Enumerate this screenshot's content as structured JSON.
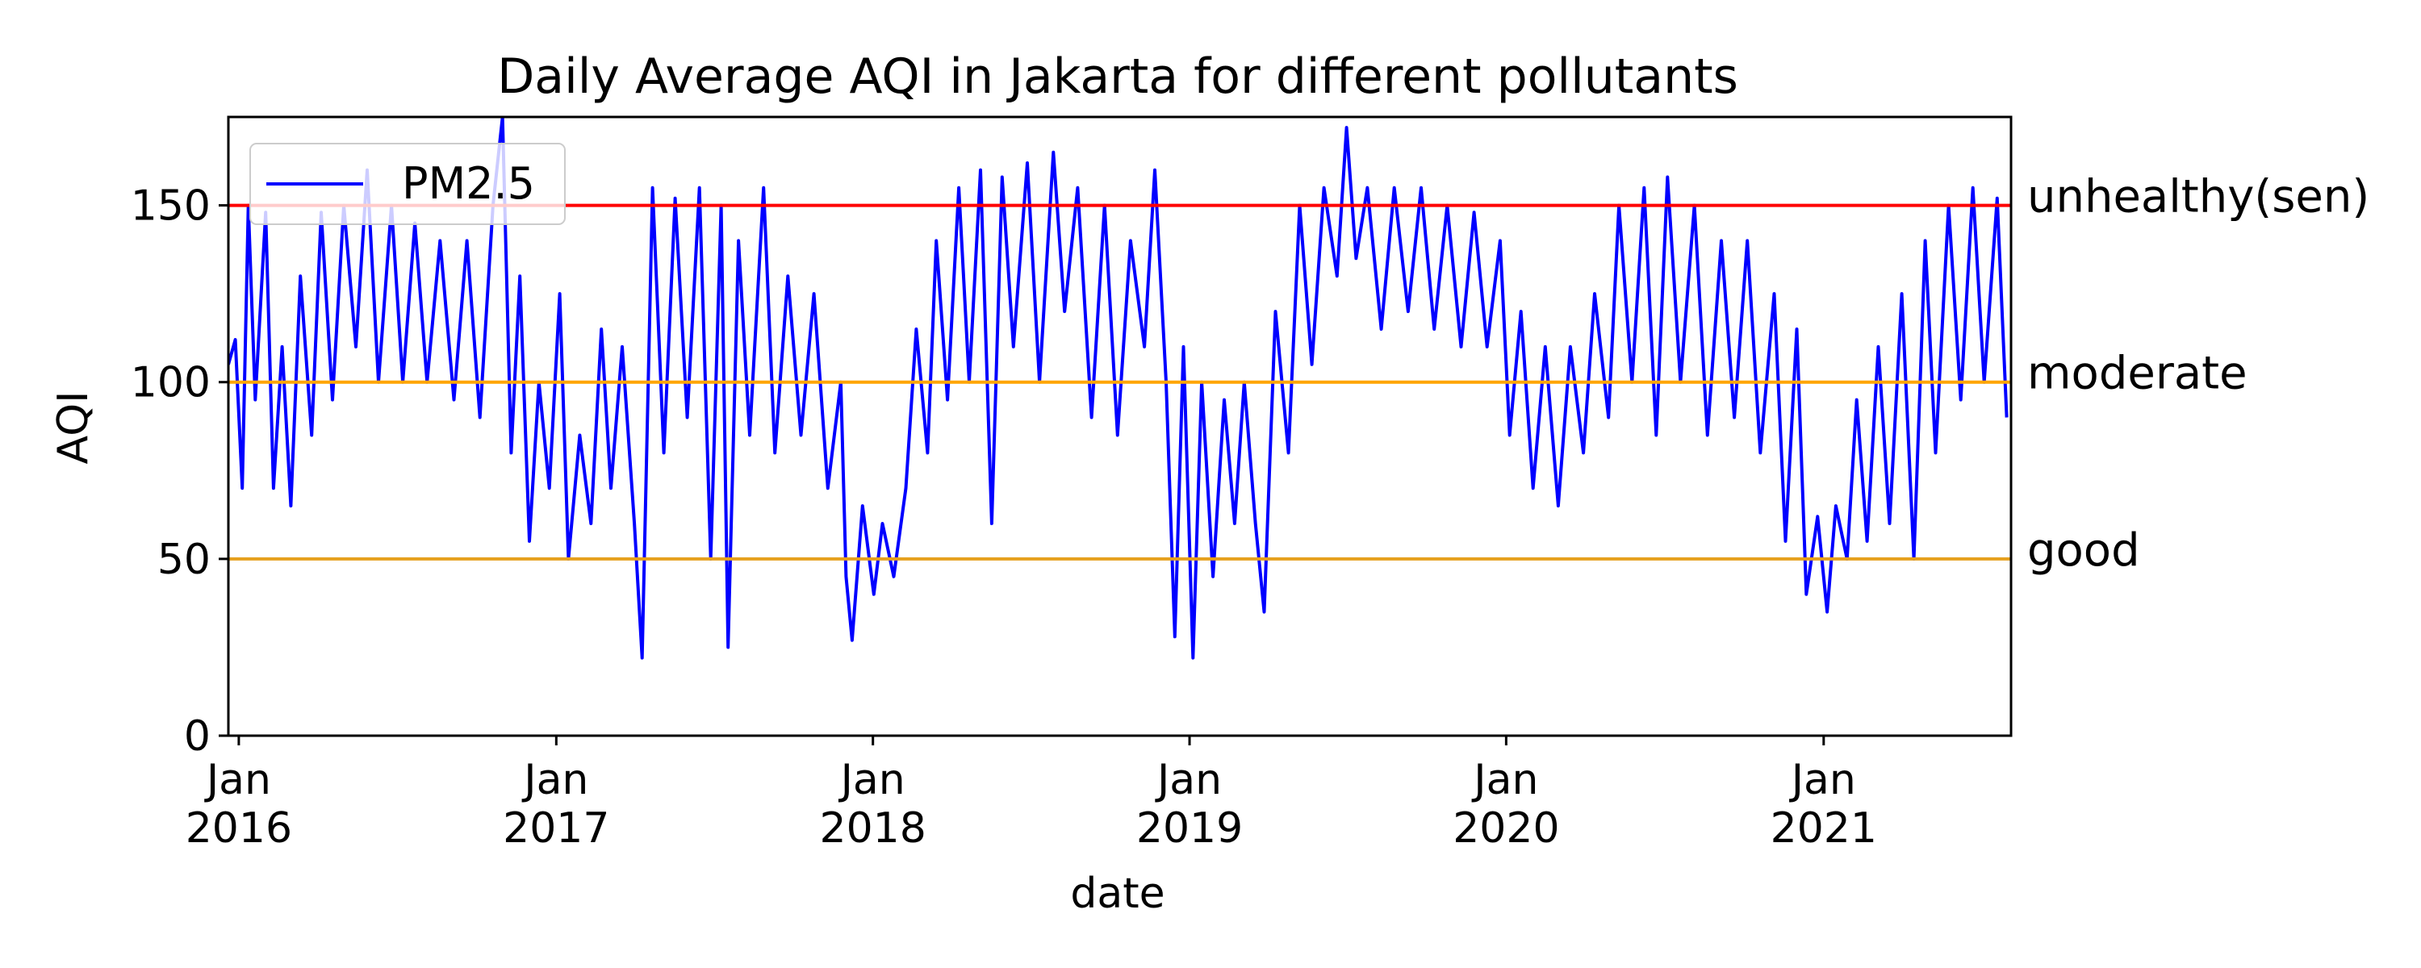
{
  "chart_data": {
    "type": "line",
    "title": "Daily Average AQI in Jakarta for different pollutants",
    "xlabel": "date",
    "ylabel": "AQI",
    "xlim": [
      "2015-12-20",
      "2021-08-05"
    ],
    "ylim": [
      0,
      175
    ],
    "y_ticks": [
      0,
      50,
      100,
      150
    ],
    "x_ticks": [
      {
        "date": "2016-01-01",
        "month": "Jan",
        "year": "2016"
      },
      {
        "date": "2017-01-01",
        "month": "Jan",
        "year": "2017"
      },
      {
        "date": "2018-01-01",
        "month": "Jan",
        "year": "2018"
      },
      {
        "date": "2019-01-01",
        "month": "Jan",
        "year": "2019"
      },
      {
        "date": "2020-01-01",
        "month": "Jan",
        "year": "2020"
      },
      {
        "date": "2021-01-01",
        "month": "Jan",
        "year": "2021"
      }
    ],
    "grid": false,
    "legend": {
      "position": "top-left",
      "entries": [
        "PM2.5"
      ]
    },
    "series": [
      {
        "name": "PM2.5",
        "color": "#0000ff",
        "points": [
          [
            "2015-12-20",
            105
          ],
          [
            "2015-12-28",
            112
          ],
          [
            "2016-01-05",
            70
          ],
          [
            "2016-01-12",
            150
          ],
          [
            "2016-01-20",
            95
          ],
          [
            "2016-02-01",
            148
          ],
          [
            "2016-02-10",
            70
          ],
          [
            "2016-02-20",
            110
          ],
          [
            "2016-03-01",
            65
          ],
          [
            "2016-03-12",
            130
          ],
          [
            "2016-03-25",
            85
          ],
          [
            "2016-04-05",
            148
          ],
          [
            "2016-04-18",
            95
          ],
          [
            "2016-05-01",
            150
          ],
          [
            "2016-05-15",
            110
          ],
          [
            "2016-05-28",
            160
          ],
          [
            "2016-06-10",
            100
          ],
          [
            "2016-06-25",
            150
          ],
          [
            "2016-07-08",
            100
          ],
          [
            "2016-07-22",
            145
          ],
          [
            "2016-08-05",
            100
          ],
          [
            "2016-08-20",
            140
          ],
          [
            "2016-09-05",
            95
          ],
          [
            "2016-09-20",
            140
          ],
          [
            "2016-10-05",
            90
          ],
          [
            "2016-10-20",
            150
          ],
          [
            "2016-10-31",
            175
          ],
          [
            "2016-11-10",
            80
          ],
          [
            "2016-11-20",
            130
          ],
          [
            "2016-12-01",
            55
          ],
          [
            "2016-12-12",
            100
          ],
          [
            "2016-12-24",
            70
          ],
          [
            "2017-01-05",
            125
          ],
          [
            "2017-01-15",
            50
          ],
          [
            "2017-01-28",
            85
          ],
          [
            "2017-02-10",
            60
          ],
          [
            "2017-02-22",
            115
          ],
          [
            "2017-03-05",
            70
          ],
          [
            "2017-03-18",
            110
          ],
          [
            "2017-04-01",
            60
          ],
          [
            "2017-04-10",
            22
          ],
          [
            "2017-04-22",
            155
          ],
          [
            "2017-05-05",
            80
          ],
          [
            "2017-05-18",
            152
          ],
          [
            "2017-06-01",
            90
          ],
          [
            "2017-06-15",
            155
          ],
          [
            "2017-06-28",
            50
          ],
          [
            "2017-07-10",
            150
          ],
          [
            "2017-07-18",
            25
          ],
          [
            "2017-07-30",
            140
          ],
          [
            "2017-08-12",
            85
          ],
          [
            "2017-08-28",
            155
          ],
          [
            "2017-09-10",
            80
          ],
          [
            "2017-09-25",
            130
          ],
          [
            "2017-10-10",
            85
          ],
          [
            "2017-10-25",
            125
          ],
          [
            "2017-11-10",
            70
          ],
          [
            "2017-11-25",
            100
          ],
          [
            "2017-12-01",
            45
          ],
          [
            "2017-12-08",
            27
          ],
          [
            "2017-12-20",
            65
          ],
          [
            "2018-01-02",
            40
          ],
          [
            "2018-01-12",
            60
          ],
          [
            "2018-01-25",
            45
          ],
          [
            "2018-02-08",
            70
          ],
          [
            "2018-02-20",
            115
          ],
          [
            "2018-03-05",
            80
          ],
          [
            "2018-03-15",
            140
          ],
          [
            "2018-03-28",
            95
          ],
          [
            "2018-04-10",
            155
          ],
          [
            "2018-04-22",
            100
          ],
          [
            "2018-05-05",
            160
          ],
          [
            "2018-05-18",
            60
          ],
          [
            "2018-05-30",
            158
          ],
          [
            "2018-06-12",
            110
          ],
          [
            "2018-06-28",
            162
          ],
          [
            "2018-07-12",
            100
          ],
          [
            "2018-07-28",
            165
          ],
          [
            "2018-08-10",
            120
          ],
          [
            "2018-08-25",
            155
          ],
          [
            "2018-09-10",
            90
          ],
          [
            "2018-09-25",
            150
          ],
          [
            "2018-10-10",
            85
          ],
          [
            "2018-10-25",
            140
          ],
          [
            "2018-11-10",
            110
          ],
          [
            "2018-11-22",
            160
          ],
          [
            "2018-12-05",
            100
          ],
          [
            "2018-12-15",
            28
          ],
          [
            "2018-12-25",
            110
          ],
          [
            "2019-01-05",
            22
          ],
          [
            "2019-01-15",
            100
          ],
          [
            "2019-01-28",
            45
          ],
          [
            "2019-02-10",
            95
          ],
          [
            "2019-02-22",
            60
          ],
          [
            "2019-03-05",
            100
          ],
          [
            "2019-03-18",
            60
          ],
          [
            "2019-03-28",
            35
          ],
          [
            "2019-04-10",
            120
          ],
          [
            "2019-04-25",
            80
          ],
          [
            "2019-05-08",
            150
          ],
          [
            "2019-05-22",
            105
          ],
          [
            "2019-06-05",
            155
          ],
          [
            "2019-06-20",
            130
          ],
          [
            "2019-07-01",
            172
          ],
          [
            "2019-07-12",
            135
          ],
          [
            "2019-07-25",
            155
          ],
          [
            "2019-08-10",
            115
          ],
          [
            "2019-08-25",
            155
          ],
          [
            "2019-09-10",
            120
          ],
          [
            "2019-09-25",
            155
          ],
          [
            "2019-10-10",
            115
          ],
          [
            "2019-10-25",
            150
          ],
          [
            "2019-11-10",
            110
          ],
          [
            "2019-11-25",
            148
          ],
          [
            "2019-12-10",
            110
          ],
          [
            "2019-12-25",
            140
          ],
          [
            "2020-01-05",
            85
          ],
          [
            "2020-01-18",
            120
          ],
          [
            "2020-02-01",
            70
          ],
          [
            "2020-02-15",
            110
          ],
          [
            "2020-03-01",
            65
          ],
          [
            "2020-03-15",
            110
          ],
          [
            "2020-03-30",
            80
          ],
          [
            "2020-04-12",
            125
          ],
          [
            "2020-04-28",
            90
          ],
          [
            "2020-05-10",
            150
          ],
          [
            "2020-05-25",
            100
          ],
          [
            "2020-06-08",
            155
          ],
          [
            "2020-06-22",
            85
          ],
          [
            "2020-07-05",
            158
          ],
          [
            "2020-07-20",
            100
          ],
          [
            "2020-08-05",
            150
          ],
          [
            "2020-08-20",
            85
          ],
          [
            "2020-09-05",
            140
          ],
          [
            "2020-09-20",
            90
          ],
          [
            "2020-10-05",
            140
          ],
          [
            "2020-10-20",
            80
          ],
          [
            "2020-11-05",
            125
          ],
          [
            "2020-11-18",
            55
          ],
          [
            "2020-12-01",
            115
          ],
          [
            "2020-12-12",
            40
          ],
          [
            "2020-12-25",
            62
          ],
          [
            "2021-01-05",
            35
          ],
          [
            "2021-01-15",
            65
          ],
          [
            "2021-01-28",
            50
          ],
          [
            "2021-02-08",
            95
          ],
          [
            "2021-02-20",
            55
          ],
          [
            "2021-03-05",
            110
          ],
          [
            "2021-03-18",
            60
          ],
          [
            "2021-04-01",
            125
          ],
          [
            "2021-04-15",
            50
          ],
          [
            "2021-04-28",
            140
          ],
          [
            "2021-05-10",
            80
          ],
          [
            "2021-05-25",
            150
          ],
          [
            "2021-06-08",
            95
          ],
          [
            "2021-06-22",
            155
          ],
          [
            "2021-07-05",
            100
          ],
          [
            "2021-07-20",
            152
          ],
          [
            "2021-07-31",
            90
          ]
        ]
      }
    ],
    "reference_lines": [
      {
        "value": 150,
        "label": "unhealthy(sen)",
        "color": "#ff0000"
      },
      {
        "value": 100,
        "label": "moderate",
        "color": "#ffa500"
      },
      {
        "value": 50,
        "label": "good",
        "color": "#e6a01e"
      }
    ]
  }
}
